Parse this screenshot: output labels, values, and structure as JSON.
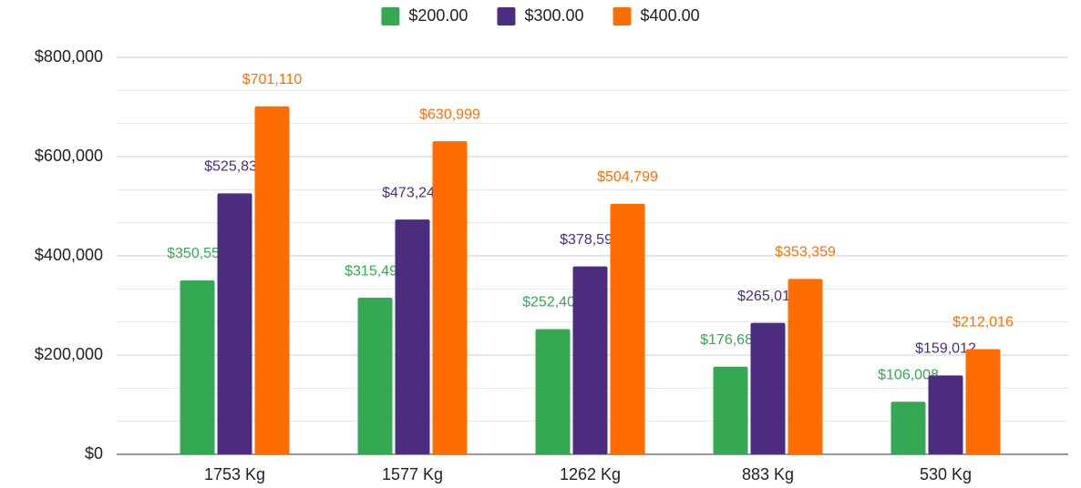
{
  "chart_data": {
    "type": "bar",
    "categories": [
      "1753 Kg",
      "1577 Kg",
      "1262 Kg",
      "883 Kg",
      "530 Kg"
    ],
    "series": [
      {
        "name": "$200.00",
        "color": "#34a853",
        "values": [
          350555,
          315499,
          252400,
          176680,
          106008
        ],
        "value_labels": [
          "$350,555",
          "$315,499",
          "$252,400",
          "$176,680",
          "$106,008"
        ]
      },
      {
        "name": "$300.00",
        "color": "#4c2c7e",
        "values": [
          525832,
          473249,
          378599,
          265019,
          159012
        ],
        "value_labels": [
          "$525,832",
          "$473,249",
          "$378,599",
          "$265,019",
          "$159,012"
        ]
      },
      {
        "name": "$400.00",
        "color": "#ff6d01",
        "values": [
          701110,
          630999,
          504799,
          353359,
          212016
        ],
        "value_labels": [
          "$701,110",
          "$630,999",
          "$504,799",
          "$353,359",
          "$212,016"
        ]
      }
    ],
    "ylim": [
      0,
      800000
    ],
    "yticks": [
      {
        "value": 0,
        "label": "$0"
      },
      {
        "value": 200000,
        "label": "$200,000"
      },
      {
        "value": 400000,
        "label": "$400,000"
      },
      {
        "value": 600000,
        "label": "$600,000"
      },
      {
        "value": 800000,
        "label": "$800,000"
      }
    ],
    "grid": true,
    "minor_grid_divisions": 3,
    "legend": "top"
  }
}
